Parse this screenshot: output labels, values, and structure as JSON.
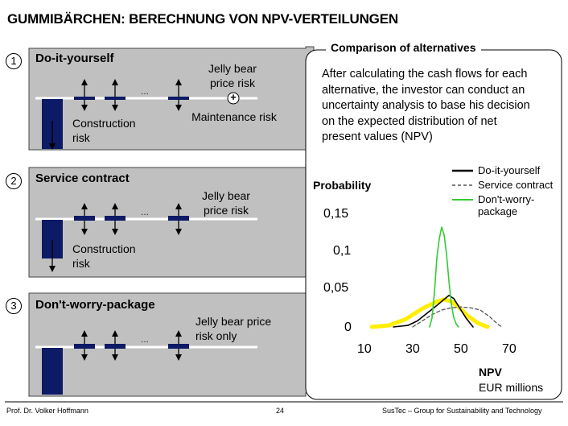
{
  "title": "GUMMIBÄRCHEN: BERECHNUNG VON NPV-VERTEILUNGEN",
  "sections": [
    {
      "number": "1",
      "name": "Do-it-yourself",
      "dots": "...",
      "jelly_label": "Jelly bear price risk",
      "plus": "+",
      "maintenance_label": "Maintenance risk",
      "construction_label": "Construction risk"
    },
    {
      "number": "2",
      "name": "Service contract",
      "dots": "...",
      "jelly_label": "Jelly bear price risk",
      "construction_label": "Construction risk"
    },
    {
      "number": "3",
      "name": "Don't-worry-package",
      "dots": "...",
      "jelly_label": "Jelly bear price risk only"
    }
  ],
  "panel": {
    "title": "Comparison of alternatives",
    "description": "After calculating the cash flows for each alternative, the investor can conduct an uncertainty analysis to base his decision on the expected distribution of net present values (NPV)"
  },
  "chart_data": {
    "type": "line",
    "ylabel": "Probability",
    "xlabel": "NPV",
    "xlabel_unit": "EUR millions",
    "x_ticks": [
      "10",
      "30",
      "50",
      "70"
    ],
    "y_ticks": [
      "0",
      "0,05",
      "0,1",
      "0,15"
    ],
    "xlim": [
      10,
      70
    ],
    "ylim": [
      0,
      0.15
    ],
    "legend": [
      "Do-it-yourself",
      "Service contract",
      "Don't-worry-package"
    ],
    "series": [
      {
        "name": "Do-it-yourself",
        "color": "#000000",
        "style": "solid",
        "x": [
          22,
          28,
          32,
          36,
          40,
          43,
          45,
          47,
          49,
          52,
          54,
          55
        ],
        "y": [
          0,
          0.002,
          0.008,
          0.018,
          0.028,
          0.036,
          0.041,
          0.037,
          0.027,
          0.012,
          0.004,
          0
        ]
      },
      {
        "name": "Service contract",
        "color": "#555555",
        "style": "dashed",
        "x": [
          30,
          34,
          38,
          42,
          46,
          50,
          54,
          58,
          62,
          64,
          66,
          67
        ],
        "y": [
          0,
          0.008,
          0.016,
          0.022,
          0.025,
          0.026,
          0.025,
          0.022,
          0.013,
          0.007,
          0.002,
          0
        ]
      },
      {
        "name": "Don't-worry-package",
        "color": "#33cc33",
        "style": "solid",
        "x": [
          37,
          38,
          39,
          40,
          41,
          42,
          43,
          44,
          45,
          46,
          47,
          48,
          49
        ],
        "y": [
          0,
          0.012,
          0.045,
          0.09,
          0.115,
          0.13,
          0.12,
          0.095,
          0.06,
          0.03,
          0.012,
          0.004,
          0
        ]
      },
      {
        "name": "Range",
        "color": "#ffee00",
        "style": "thick",
        "x": [
          13,
          20,
          27,
          34,
          40,
          43,
          46,
          49,
          53,
          57,
          61
        ],
        "y": [
          0,
          0.002,
          0.01,
          0.024,
          0.033,
          0.036,
          0.033,
          0.026,
          0.014,
          0.005,
          0
        ]
      }
    ]
  },
  "footer": {
    "left": "Prof. Dr. Volker Hoffmann",
    "page": "24",
    "right": "SusTec – Group for Sustainability and Technology"
  },
  "colors": {
    "box_fill": "#c0c0c0",
    "bar_fill": "#0d1a66",
    "accent_green": "#33cc33",
    "accent_yellow": "#ffee00"
  }
}
